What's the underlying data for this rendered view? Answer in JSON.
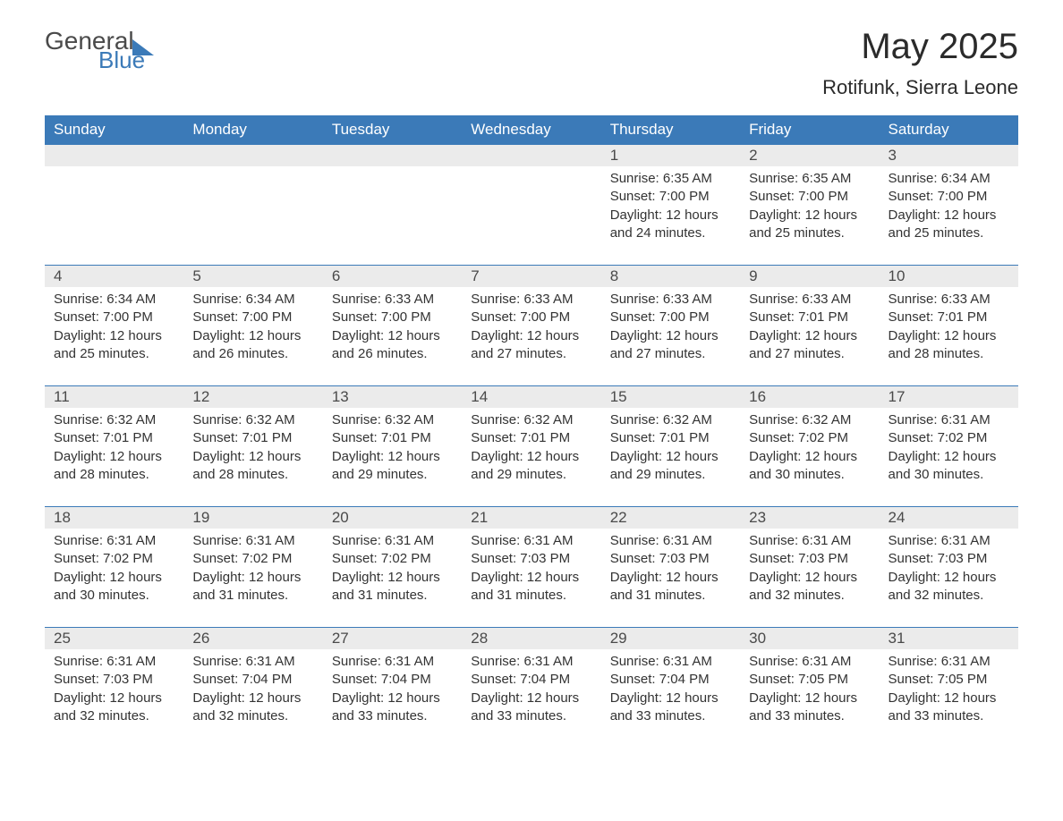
{
  "logo": {
    "text_general": "General",
    "text_blue": "Blue"
  },
  "title": "May 2025",
  "location": "Rotifunk, Sierra Leone",
  "colors": {
    "header_bg": "#3b7ab8",
    "header_text": "#ffffff",
    "daynum_bg": "#ebebeb",
    "text": "#333333",
    "row_border": "#3b7ab8",
    "background": "#ffffff"
  },
  "day_headers": [
    "Sunday",
    "Monday",
    "Tuesday",
    "Wednesday",
    "Thursday",
    "Friday",
    "Saturday"
  ],
  "weeks": [
    [
      {
        "empty": true
      },
      {
        "empty": true
      },
      {
        "empty": true
      },
      {
        "empty": true
      },
      {
        "day": "1",
        "sunrise": "6:35 AM",
        "sunset": "7:00 PM",
        "daylight": "12 hours and 24 minutes."
      },
      {
        "day": "2",
        "sunrise": "6:35 AM",
        "sunset": "7:00 PM",
        "daylight": "12 hours and 25 minutes."
      },
      {
        "day": "3",
        "sunrise": "6:34 AM",
        "sunset": "7:00 PM",
        "daylight": "12 hours and 25 minutes."
      }
    ],
    [
      {
        "day": "4",
        "sunrise": "6:34 AM",
        "sunset": "7:00 PM",
        "daylight": "12 hours and 25 minutes."
      },
      {
        "day": "5",
        "sunrise": "6:34 AM",
        "sunset": "7:00 PM",
        "daylight": "12 hours and 26 minutes."
      },
      {
        "day": "6",
        "sunrise": "6:33 AM",
        "sunset": "7:00 PM",
        "daylight": "12 hours and 26 minutes."
      },
      {
        "day": "7",
        "sunrise": "6:33 AM",
        "sunset": "7:00 PM",
        "daylight": "12 hours and 27 minutes."
      },
      {
        "day": "8",
        "sunrise": "6:33 AM",
        "sunset": "7:00 PM",
        "daylight": "12 hours and 27 minutes."
      },
      {
        "day": "9",
        "sunrise": "6:33 AM",
        "sunset": "7:01 PM",
        "daylight": "12 hours and 27 minutes."
      },
      {
        "day": "10",
        "sunrise": "6:33 AM",
        "sunset": "7:01 PM",
        "daylight": "12 hours and 28 minutes."
      }
    ],
    [
      {
        "day": "11",
        "sunrise": "6:32 AM",
        "sunset": "7:01 PM",
        "daylight": "12 hours and 28 minutes."
      },
      {
        "day": "12",
        "sunrise": "6:32 AM",
        "sunset": "7:01 PM",
        "daylight": "12 hours and 28 minutes."
      },
      {
        "day": "13",
        "sunrise": "6:32 AM",
        "sunset": "7:01 PM",
        "daylight": "12 hours and 29 minutes."
      },
      {
        "day": "14",
        "sunrise": "6:32 AM",
        "sunset": "7:01 PM",
        "daylight": "12 hours and 29 minutes."
      },
      {
        "day": "15",
        "sunrise": "6:32 AM",
        "sunset": "7:01 PM",
        "daylight": "12 hours and 29 minutes."
      },
      {
        "day": "16",
        "sunrise": "6:32 AM",
        "sunset": "7:02 PM",
        "daylight": "12 hours and 30 minutes."
      },
      {
        "day": "17",
        "sunrise": "6:31 AM",
        "sunset": "7:02 PM",
        "daylight": "12 hours and 30 minutes."
      }
    ],
    [
      {
        "day": "18",
        "sunrise": "6:31 AM",
        "sunset": "7:02 PM",
        "daylight": "12 hours and 30 minutes."
      },
      {
        "day": "19",
        "sunrise": "6:31 AM",
        "sunset": "7:02 PM",
        "daylight": "12 hours and 31 minutes."
      },
      {
        "day": "20",
        "sunrise": "6:31 AM",
        "sunset": "7:02 PM",
        "daylight": "12 hours and 31 minutes."
      },
      {
        "day": "21",
        "sunrise": "6:31 AM",
        "sunset": "7:03 PM",
        "daylight": "12 hours and 31 minutes."
      },
      {
        "day": "22",
        "sunrise": "6:31 AM",
        "sunset": "7:03 PM",
        "daylight": "12 hours and 31 minutes."
      },
      {
        "day": "23",
        "sunrise": "6:31 AM",
        "sunset": "7:03 PM",
        "daylight": "12 hours and 32 minutes."
      },
      {
        "day": "24",
        "sunrise": "6:31 AM",
        "sunset": "7:03 PM",
        "daylight": "12 hours and 32 minutes."
      }
    ],
    [
      {
        "day": "25",
        "sunrise": "6:31 AM",
        "sunset": "7:03 PM",
        "daylight": "12 hours and 32 minutes."
      },
      {
        "day": "26",
        "sunrise": "6:31 AM",
        "sunset": "7:04 PM",
        "daylight": "12 hours and 32 minutes."
      },
      {
        "day": "27",
        "sunrise": "6:31 AM",
        "sunset": "7:04 PM",
        "daylight": "12 hours and 33 minutes."
      },
      {
        "day": "28",
        "sunrise": "6:31 AM",
        "sunset": "7:04 PM",
        "daylight": "12 hours and 33 minutes."
      },
      {
        "day": "29",
        "sunrise": "6:31 AM",
        "sunset": "7:04 PM",
        "daylight": "12 hours and 33 minutes."
      },
      {
        "day": "30",
        "sunrise": "6:31 AM",
        "sunset": "7:05 PM",
        "daylight": "12 hours and 33 minutes."
      },
      {
        "day": "31",
        "sunrise": "6:31 AM",
        "sunset": "7:05 PM",
        "daylight": "12 hours and 33 minutes."
      }
    ]
  ],
  "labels": {
    "sunrise": "Sunrise: ",
    "sunset": "Sunset: ",
    "daylight": "Daylight: "
  }
}
